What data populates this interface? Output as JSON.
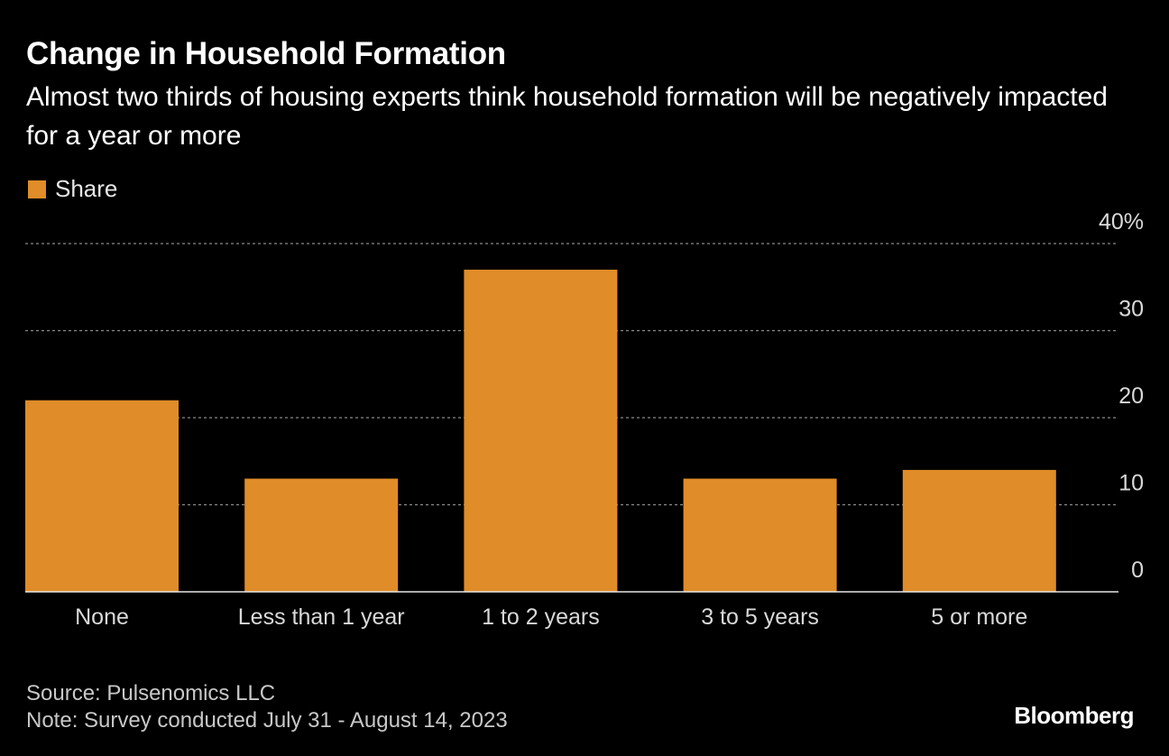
{
  "title": "Change in Household Formation",
  "subtitle": "Almost two thirds of housing experts think household formation will be negatively impacted for a year or more",
  "legend": {
    "label": "Share",
    "color": "#e08c28"
  },
  "footer": {
    "source": "Source: Pulsenomics LLC",
    "note": "Note: Survey conducted July 31 - August 14, 2023"
  },
  "brand": "Bloomberg",
  "chart_data": {
    "type": "bar",
    "categories": [
      "None",
      "Less than 1 year",
      "1 to 2 years",
      "3 to 5 years",
      "5 or more"
    ],
    "series": [
      {
        "name": "Share",
        "values": [
          22,
          13,
          37,
          13,
          14
        ],
        "color": "#e08c28"
      }
    ],
    "ylim": [
      0,
      40
    ],
    "yticks": [
      0,
      10,
      20,
      30,
      40
    ],
    "ytick_labels": [
      "0",
      "10",
      "20",
      "30",
      "40%"
    ],
    "grid": true,
    "legend_position": "top-left",
    "y_axis_side": "right"
  }
}
